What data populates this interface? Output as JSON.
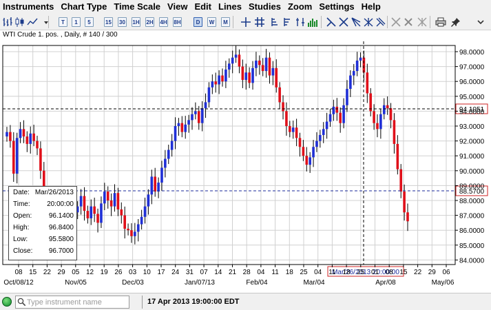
{
  "menu": {
    "items": [
      "Instruments",
      "Chart Type",
      "Time Scale",
      "View",
      "Edit",
      "Lines",
      "Studies",
      "Zoom",
      "Settings",
      "Help"
    ]
  },
  "toolbar": {
    "timeframes": [
      "T",
      "1",
      "5",
      "15",
      "30",
      "1H",
      "2H",
      "4H",
      "8H",
      "D",
      "W",
      "M"
    ],
    "active_timeframe": "D"
  },
  "chart": {
    "title": "WTI Crude 1. pos. , Daily, # 140 / 300",
    "colors": {
      "up": "#1f2fd6",
      "down": "#e0101a",
      "grid": "#d0d0d0",
      "crosshair": "#000000",
      "highlight": "#cc2020"
    },
    "y_axis": {
      "labels": [
        "98.0000",
        "97.0000",
        "96.0000",
        "95.0000",
        "94.0000",
        "93.0000",
        "92.0000",
        "91.0000",
        "90.0000",
        "89.0000",
        "88.0000",
        "87.0000",
        "86.0000",
        "85.0000",
        "84.0000"
      ],
      "range": [
        83.8,
        98.3
      ]
    },
    "x_axis": {
      "day_labels": [
        "08",
        "15",
        "22",
        "29",
        "05",
        "12",
        "19",
        "26",
        "03",
        "10",
        "17",
        "24",
        "31",
        "07",
        "14",
        "21",
        "28",
        "04",
        "11",
        "18",
        "25",
        "04",
        "11",
        "18",
        "25",
        "01",
        "08",
        "15",
        "22",
        "29",
        "06"
      ],
      "month_labels": [
        "Oct/08/12",
        "Nov/05",
        "Dec/03",
        "Jan/07/13",
        "Feb/04",
        "Mar/04",
        "Apr/08",
        "May/06"
      ]
    },
    "price_markers": {
      "crosshair_price": "94.1051",
      "dashed_line_price": "88.5700",
      "crosshair_date": "Mar/26/2013 20:00:00"
    },
    "data_box": {
      "rows": [
        {
          "label": "Date:",
          "value": "Mar/26/2013"
        },
        {
          "label": "Time:",
          "value": "20:00:00"
        },
        {
          "label": "Open:",
          "value": "96.1400"
        },
        {
          "label": "High:",
          "value": "96.8400"
        },
        {
          "label": "Low:",
          "value": "95.5800"
        },
        {
          "label": "Close:",
          "value": "96.7000"
        }
      ]
    }
  },
  "statusbar": {
    "search_placeholder": "Type instrument name",
    "datetime": "17 Apr 2013 19:00:00 EDT"
  }
}
